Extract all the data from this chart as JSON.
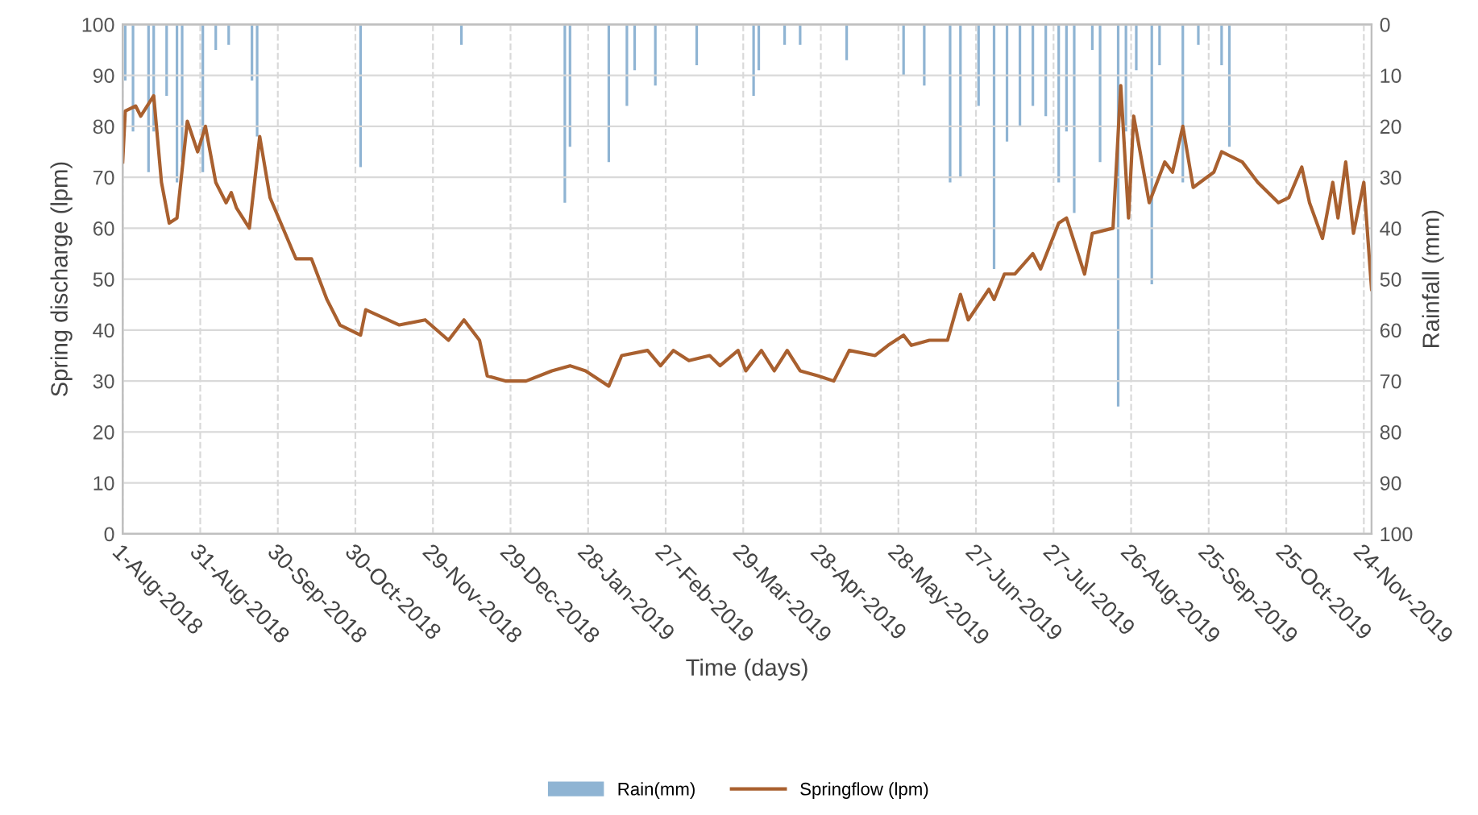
{
  "chart_data": {
    "type": "line",
    "xlabel": "Time (days)",
    "ylabel": "Spring discharge (lpm)",
    "y2label": "Rainfall (mm)",
    "xlim": [
      "2018-08-01",
      "2019-11-27"
    ],
    "xticks": [
      {
        "value": "2018-08-01",
        "label": "1-Aug-2018"
      },
      {
        "value": "2018-08-31",
        "label": "31-Aug-2018"
      },
      {
        "value": "2018-09-30",
        "label": "30-Sep-2018"
      },
      {
        "value": "2018-10-30",
        "label": "30-Oct-2018"
      },
      {
        "value": "2018-11-29",
        "label": "29-Nov-2018"
      },
      {
        "value": "2018-12-29",
        "label": "29-Dec-2018"
      },
      {
        "value": "2019-01-28",
        "label": "28-Jan-2019"
      },
      {
        "value": "2019-02-27",
        "label": "27-Feb-2019"
      },
      {
        "value": "2019-03-29",
        "label": "29-Mar-2019"
      },
      {
        "value": "2019-04-28",
        "label": "28-Apr-2019"
      },
      {
        "value": "2019-05-28",
        "label": "28-May-2019"
      },
      {
        "value": "2019-06-27",
        "label": "27-Jun-2019"
      },
      {
        "value": "2019-07-27",
        "label": "27-Jul-2019"
      },
      {
        "value": "2019-08-26",
        "label": "26-Aug-2019"
      },
      {
        "value": "2019-09-25",
        "label": "25-Sep-2019"
      },
      {
        "value": "2019-10-25",
        "label": "25-Oct-2019"
      },
      {
        "value": "2019-11-24",
        "label": "24-Nov-2019"
      }
    ],
    "ylim": [
      0,
      100
    ],
    "yticks": [
      0,
      10,
      20,
      30,
      40,
      50,
      60,
      70,
      80,
      90,
      100
    ],
    "y2lim": [
      100,
      0
    ],
    "y2ticks": [
      0,
      10,
      20,
      30,
      40,
      50,
      60,
      70,
      80,
      90,
      100
    ],
    "grid": true,
    "legend": "bottom",
    "marker": "none",
    "line_style": "solid",
    "series": [
      {
        "name": "Rain(mm)",
        "type": "bar",
        "axis": "y2",
        "color": "#8fb4d3",
        "x": [
          "2018-08-02",
          "2018-08-05",
          "2018-08-11",
          "2018-08-13",
          "2018-08-18",
          "2018-08-22",
          "2018-08-24",
          "2018-09-01",
          "2018-09-06",
          "2018-09-11",
          "2018-09-20",
          "2018-09-22",
          "2018-11-01",
          "2018-12-10",
          "2019-01-19",
          "2019-01-21",
          "2019-02-05",
          "2019-02-12",
          "2019-02-15",
          "2019-02-23",
          "2019-03-11",
          "2019-04-02",
          "2019-04-04",
          "2019-04-14",
          "2019-04-20",
          "2019-05-08",
          "2019-05-30",
          "2019-06-07",
          "2019-06-17",
          "2019-06-21",
          "2019-06-28",
          "2019-07-04",
          "2019-07-09",
          "2019-07-14",
          "2019-07-19",
          "2019-07-24",
          "2019-07-29",
          "2019-08-01",
          "2019-08-04",
          "2019-08-11",
          "2019-08-14",
          "2019-08-21",
          "2019-08-24",
          "2019-08-28",
          "2019-09-03",
          "2019-09-06",
          "2019-09-15",
          "2019-09-21",
          "2019-09-30",
          "2019-10-03"
        ],
        "values": [
          11,
          21,
          29,
          21,
          14,
          31,
          27,
          29,
          5,
          4,
          11,
          22,
          28,
          4,
          35,
          24,
          27,
          16,
          9,
          12,
          8,
          14,
          9,
          4,
          4,
          7,
          10,
          12,
          31,
          30,
          16,
          48,
          23,
          20,
          16,
          18,
          31,
          21,
          37,
          5,
          27,
          75,
          21,
          9,
          51,
          8,
          31,
          4,
          8,
          24
        ]
      },
      {
        "name": "Springflow (lpm)",
        "axis": "y",
        "color": "#a9602f",
        "x": [
          "2018-08-01",
          "2018-08-02",
          "2018-08-06",
          "2018-08-08",
          "2018-08-13",
          "2018-08-16",
          "2018-08-19",
          "2018-08-22",
          "2018-08-26",
          "2018-08-30",
          "2018-09-02",
          "2018-09-06",
          "2018-09-10",
          "2018-09-12",
          "2018-09-14",
          "2018-09-19",
          "2018-09-23",
          "2018-09-27",
          "2018-10-07",
          "2018-10-13",
          "2018-10-19",
          "2018-10-24",
          "2018-11-01",
          "2018-11-03",
          "2018-11-16",
          "2018-11-26",
          "2018-12-05",
          "2018-12-11",
          "2018-12-17",
          "2018-12-20",
          "2018-12-27",
          "2019-01-04",
          "2019-01-14",
          "2019-01-21",
          "2019-01-27",
          "2019-02-05",
          "2019-02-10",
          "2019-02-20",
          "2019-02-25",
          "2019-03-02",
          "2019-03-08",
          "2019-03-16",
          "2019-03-20",
          "2019-03-27",
          "2019-03-30",
          "2019-04-05",
          "2019-04-10",
          "2019-04-15",
          "2019-04-20",
          "2019-04-27",
          "2019-05-03",
          "2019-05-09",
          "2019-05-19",
          "2019-05-24",
          "2019-05-30",
          "2019-06-02",
          "2019-06-09",
          "2019-06-16",
          "2019-06-21",
          "2019-06-24",
          "2019-07-02",
          "2019-07-04",
          "2019-07-08",
          "2019-07-12",
          "2019-07-19",
          "2019-07-22",
          "2019-07-29",
          "2019-08-01",
          "2019-08-08",
          "2019-08-11",
          "2019-08-19",
          "2019-08-22",
          "2019-08-25",
          "2019-08-27",
          "2019-09-02",
          "2019-09-08",
          "2019-09-11",
          "2019-09-15",
          "2019-09-19",
          "2019-09-27",
          "2019-09-30",
          "2019-10-08",
          "2019-10-14",
          "2019-10-22",
          "2019-10-26",
          "2019-10-31",
          "2019-11-03",
          "2019-11-08",
          "2019-11-12",
          "2019-11-14",
          "2019-11-17",
          "2019-11-20",
          "2019-11-24",
          "2019-11-27"
        ],
        "values": [
          73,
          83,
          84,
          82,
          86,
          69,
          61,
          62,
          81,
          75,
          80,
          69,
          65,
          67,
          64,
          60,
          78,
          66,
          54,
          54,
          46,
          41,
          39,
          44,
          41,
          42,
          38,
          42,
          38,
          31,
          30,
          30,
          32,
          33,
          32,
          29,
          35,
          36,
          33,
          36,
          34,
          35,
          33,
          36,
          32,
          36,
          32,
          36,
          32,
          31,
          30,
          36,
          35,
          37,
          39,
          37,
          38,
          38,
          47,
          42,
          48,
          46,
          51,
          51,
          55,
          52,
          61,
          62,
          51,
          59,
          60,
          88,
          62,
          82,
          65,
          73,
          71,
          80,
          68,
          71,
          75,
          73,
          69,
          65,
          66,
          72,
          65,
          58,
          69,
          62,
          73,
          59,
          69,
          48
        ]
      }
    ]
  }
}
